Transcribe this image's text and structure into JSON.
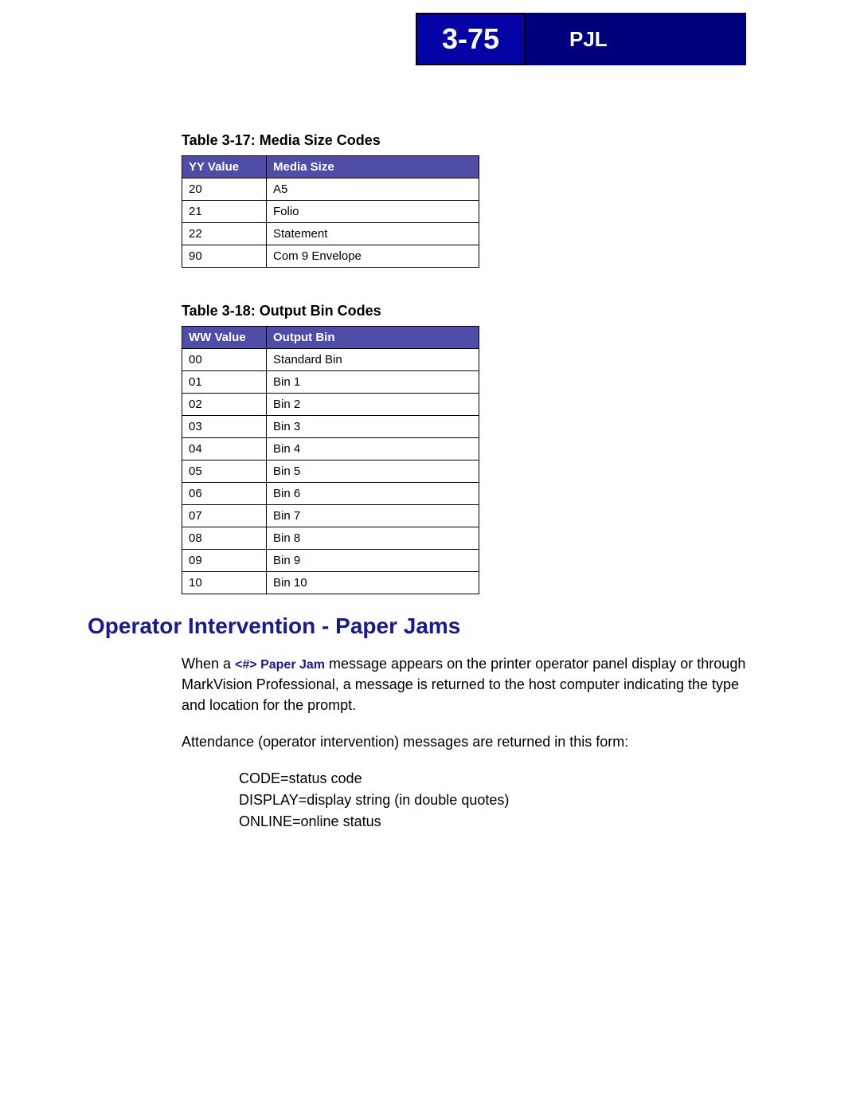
{
  "header": {
    "page_number": "3-75",
    "section_label": "PJL"
  },
  "table1": {
    "caption": "Table 3-17:  Media Size Codes",
    "col1_header": "YY Value",
    "col2_header": "Media Size",
    "rows": [
      {
        "c1": "20",
        "c2": "A5"
      },
      {
        "c1": "21",
        "c2": "Folio"
      },
      {
        "c1": "22",
        "c2": "Statement"
      },
      {
        "c1": "90",
        "c2": "Com 9 Envelope"
      }
    ]
  },
  "table2": {
    "caption": "Table 3-18:  Output Bin Codes",
    "col1_header": "WW Value",
    "col2_header": "Output Bin",
    "rows": [
      {
        "c1": "00",
        "c2": "Standard Bin"
      },
      {
        "c1": "01",
        "c2": "Bin 1"
      },
      {
        "c1": "02",
        "c2": "Bin 2"
      },
      {
        "c1": "03",
        "c2": "Bin 3"
      },
      {
        "c1": "04",
        "c2": "Bin 4"
      },
      {
        "c1": "05",
        "c2": "Bin 5"
      },
      {
        "c1": "06",
        "c2": "Bin 6"
      },
      {
        "c1": "07",
        "c2": "Bin 7"
      },
      {
        "c1": "08",
        "c2": "Bin 8"
      },
      {
        "c1": "09",
        "c2": "Bin 9"
      },
      {
        "c1": "10",
        "c2": "Bin 10"
      }
    ]
  },
  "heading": "Operator Intervention - Paper Jams",
  "paragraph1_prefix": "When a ",
  "paragraph1_bold": "<#> Paper Jam",
  "paragraph1_suffix": " message appears on the printer operator panel display or through MarkVision Professional, a message is returned to the host computer indicating the type and location for the prompt.",
  "paragraph2": "Attendance (operator intervention) messages are returned in this form:",
  "line_code": "CODE=status code",
  "line_display": "DISPLAY=display string (in double quotes)",
  "line_online": "ONLINE=online status"
}
